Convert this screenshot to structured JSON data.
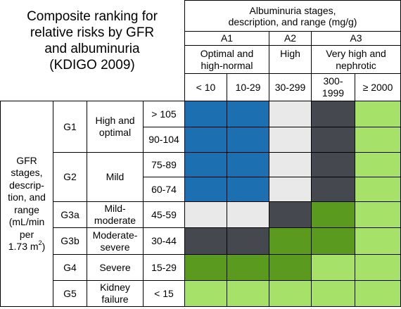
{
  "title_lines": [
    "Composite ranking for",
    "relative risks by GFR",
    "and albuminuria",
    "(KDIGO 2009)"
  ],
  "albuminuria_header": [
    "Albuminuria stages,",
    "description, and range (mg/g)"
  ],
  "a_stages": [
    "A1",
    "A2",
    "A3"
  ],
  "a_descriptions": {
    "a1": [
      "Optimal and",
      "high-normal"
    ],
    "a2": "High",
    "a3": [
      "Very high and",
      "nephrotic"
    ]
  },
  "a_ranges": [
    "< 10",
    "10-29",
    "30-299",
    "300-",
    "1999",
    "≥ 2000"
  ],
  "gfr_label": [
    "GFR",
    "stages,",
    "descrip-",
    "tion, and",
    "range",
    "(mL/min",
    "per",
    "1.73 m",
    "2",
    ")"
  ],
  "rows": [
    {
      "stage": "G1",
      "desc": [
        "High and",
        "optimal"
      ],
      "ranges": [
        "> 105",
        "90-104"
      ]
    },
    {
      "stage": "G2",
      "desc": [
        "Mild"
      ],
      "ranges": [
        "75-89",
        "60-74"
      ]
    },
    {
      "stage": "G3a",
      "desc": [
        "Mild-",
        "moderate"
      ],
      "ranges": [
        "45-59"
      ]
    },
    {
      "stage": "G3b",
      "desc": [
        "Moderate-",
        "severe"
      ],
      "ranges": [
        "30-44"
      ]
    },
    {
      "stage": "G4",
      "desc": [
        "Severe"
      ],
      "ranges": [
        "15-29"
      ]
    },
    {
      "stage": "G5",
      "desc": [
        "Kidney",
        "failure"
      ],
      "ranges": [
        "< 15"
      ]
    }
  ],
  "colors": {
    "blue": "#1c6fb1",
    "light_gray": "#e9e9e9",
    "dark_gray": "#45494f",
    "dark_green": "#5a9a1e",
    "light_green": "#a6e26a"
  },
  "risk_grid": [
    [
      "blue",
      "blue",
      "light_gray",
      "dark_gray",
      "light_green"
    ],
    [
      "blue",
      "blue",
      "light_gray",
      "dark_gray",
      "light_green"
    ],
    [
      "blue",
      "blue",
      "light_gray",
      "dark_gray",
      "light_green"
    ],
    [
      "blue",
      "blue",
      "light_gray",
      "dark_gray",
      "light_green"
    ],
    [
      "light_gray",
      "light_gray",
      "dark_gray",
      "dark_green",
      "light_green"
    ],
    [
      "dark_gray",
      "dark_gray",
      "dark_green",
      "dark_green",
      "light_green"
    ],
    [
      "dark_green",
      "dark_green",
      "dark_green",
      "light_green",
      "light_green"
    ],
    [
      "light_green",
      "light_green",
      "light_green",
      "light_green",
      "light_green"
    ]
  ]
}
